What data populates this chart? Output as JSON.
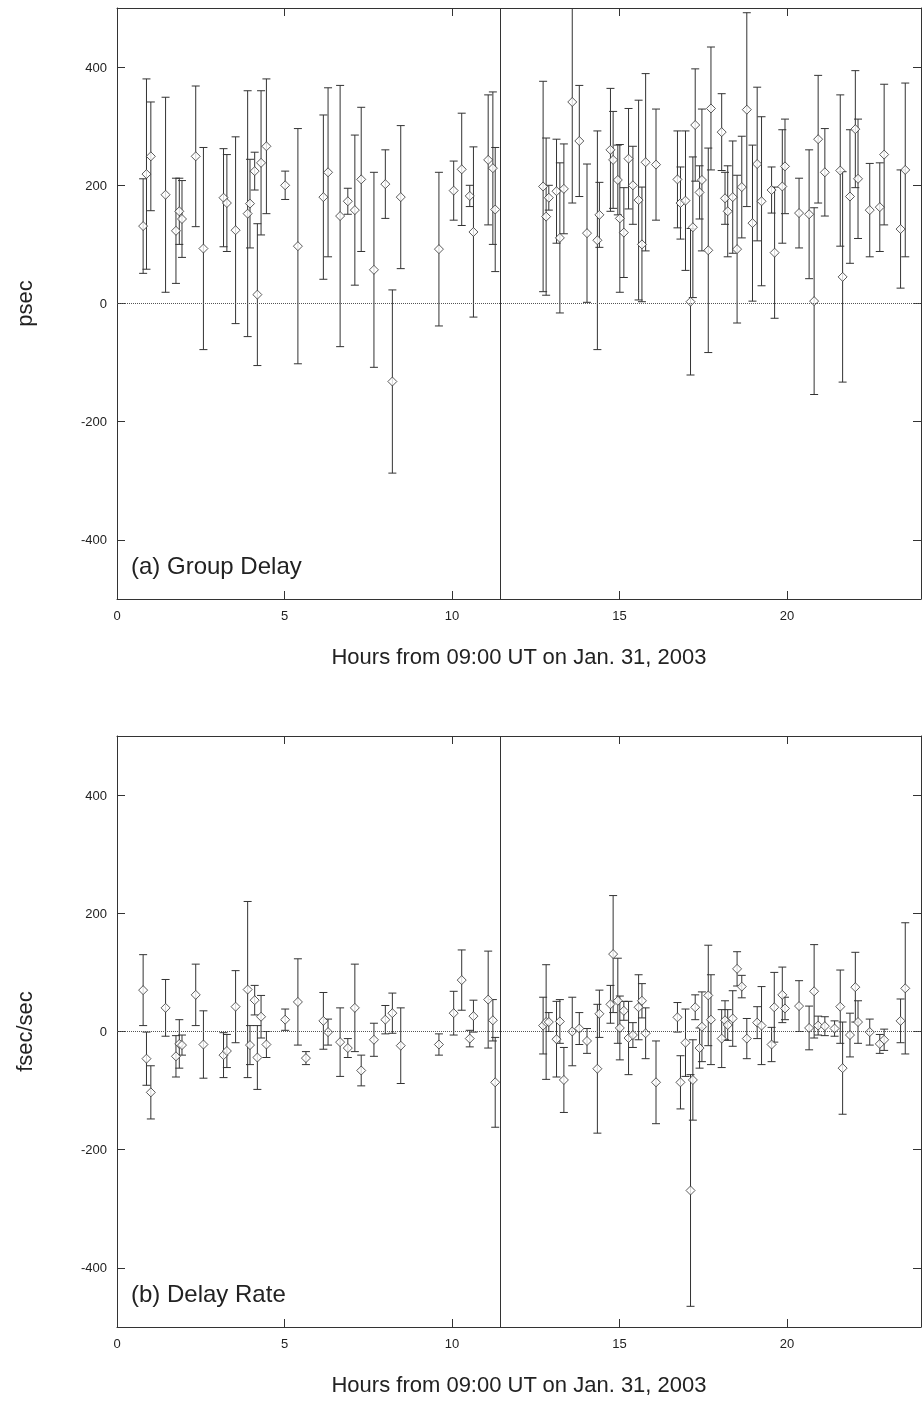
{
  "chart_data": [
    {
      "type": "scatter",
      "xlabel": "Hours from 09:00 UT on Jan. 31, 2003",
      "ylabel": "psec",
      "annotations": [
        "(a) Group Delay"
      ],
      "marker": "diamond",
      "color": "#333333",
      "xlim": [
        0,
        24
      ],
      "xticks": [
        0,
        5,
        10,
        15,
        20
      ],
      "ylim": [
        -500,
        500
      ],
      "yticks": [
        -400,
        -200,
        0,
        200,
        400
      ],
      "ref_lines": [
        {
          "axis": "y",
          "value": 0,
          "line_style": "dotted",
          "color": "#555555"
        },
        {
          "axis": "x",
          "value": 11.45,
          "line_style": "solid",
          "color": "#333333"
        }
      ],
      "x": [
        0.78,
        0.88,
        1.01,
        1.45,
        1.76,
        1.86,
        1.94,
        2.35,
        2.58,
        3.18,
        3.28,
        3.54,
        3.9,
        3.97,
        4.11,
        4.19,
        4.3,
        4.46,
        5.02,
        5.4,
        6.16,
        6.3,
        6.66,
        6.89,
        7.1,
        7.29,
        7.67,
        8.01,
        8.22,
        8.47,
        9.61,
        10.05,
        10.29,
        10.53,
        10.64,
        11.08,
        11.22,
        11.29,
        12.72,
        12.81,
        12.89,
        13.12,
        13.22,
        13.34,
        13.59,
        13.8,
        14.03,
        14.34,
        14.4,
        14.73,
        14.81,
        14.95,
        15.01,
        15.13,
        15.27,
        15.4,
        15.57,
        15.67,
        15.78,
        16.09,
        16.73,
        16.82,
        16.97,
        17.12,
        17.19,
        17.26,
        17.39,
        17.46,
        17.65,
        17.73,
        18.05,
        18.15,
        18.23,
        18.38,
        18.51,
        18.65,
        18.8,
        18.97,
        19.11,
        19.24,
        19.54,
        19.63,
        19.86,
        19.94,
        20.36,
        20.66,
        20.81,
        20.93,
        21.13,
        21.59,
        21.66,
        21.88,
        22.04,
        22.12,
        22.47,
        22.77,
        22.9,
        23.39,
        23.53
      ],
      "values": [
        131,
        219,
        249,
        184,
        123,
        156,
        143,
        249,
        93,
        179,
        170,
        124,
        152,
        169,
        224,
        15,
        238,
        266,
        200,
        97,
        180,
        222,
        148,
        173,
        158,
        210,
        57,
        202,
        -132,
        180,
        92,
        191,
        227,
        182,
        121,
        243,
        229,
        159,
        198,
        147,
        179,
        190,
        111,
        194,
        341,
        275,
        119,
        107,
        150,
        260,
        243,
        209,
        144,
        120,
        245,
        200,
        175,
        100,
        239,
        235,
        210,
        170,
        174,
        3,
        129,
        302,
        188,
        209,
        90,
        330,
        290,
        178,
        156,
        180,
        92,
        197,
        328,
        136,
        236,
        173,
        192,
        86,
        198,
        232,
        153,
        151,
        4,
        278,
        222,
        225,
        45,
        181,
        295,
        211,
        158,
        163,
        252,
        126,
        226
      ],
      "errors": [
        80,
        161,
        92,
        165,
        89,
        56,
        65,
        119,
        171,
        83,
        82,
        158,
        208,
        75,
        32,
        120,
        122,
        114,
        24,
        199,
        139,
        143,
        221,
        22,
        127,
        122,
        165,
        58,
        155,
        121,
        130,
        50,
        95,
        18,
        144,
        110,
        129,
        105,
        178,
        133,
        21,
        88,
        127,
        76,
        [
          170,
          500
        ],
        94,
        117,
        185,
        55,
        104,
        82,
        59,
        125,
        76,
        85,
        66,
        169,
        97,
        150,
        94,
        82,
        61,
        118,
        124,
        119,
        95,
        45,
        120,
        173,
        104,
        65,
        44,
        77,
        95,
        125,
        86,
        164,
        132,
        130,
        143,
        39,
        111,
        96,
        80,
        59,
        109,
        158,
        108,
        74,
        128,
        178,
        113,
        99,
        101,
        79,
        75,
        119,
        100,
        147
      ]
    },
    {
      "type": "scatter",
      "xlabel": "Hours from 09:00 UT on Jan. 31, 2003",
      "ylabel": "fsec/sec",
      "annotations": [
        "(b) Delay Rate"
      ],
      "marker": "diamond",
      "color": "#333333",
      "xlim": [
        0,
        24
      ],
      "xticks": [
        0,
        5,
        10,
        15,
        20
      ],
      "ylim": [
        -500,
        500
      ],
      "yticks": [
        -400,
        -200,
        0,
        200,
        400
      ],
      "ref_lines": [
        {
          "axis": "y",
          "value": 0,
          "line_style": "dotted",
          "color": "#555555"
        },
        {
          "axis": "x",
          "value": 11.45,
          "line_style": "solid",
          "color": "#333333"
        }
      ],
      "x": [
        0.78,
        0.88,
        1.01,
        1.45,
        1.76,
        1.86,
        1.94,
        2.35,
        2.58,
        3.18,
        3.28,
        3.54,
        3.9,
        3.97,
        4.11,
        4.19,
        4.3,
        4.46,
        5.02,
        5.4,
        5.64,
        6.16,
        6.3,
        6.66,
        6.89,
        7.1,
        7.29,
        7.67,
        8.01,
        8.22,
        8.47,
        9.61,
        10.05,
        10.29,
        10.53,
        10.64,
        11.08,
        11.22,
        11.29,
        12.72,
        12.81,
        12.89,
        13.12,
        13.22,
        13.34,
        13.59,
        13.8,
        14.03,
        14.34,
        14.4,
        14.73,
        14.81,
        14.95,
        15.01,
        15.13,
        15.27,
        15.4,
        15.57,
        15.67,
        15.78,
        16.09,
        16.73,
        16.82,
        16.97,
        17.12,
        17.19,
        17.26,
        17.39,
        17.46,
        17.65,
        17.73,
        18.05,
        18.15,
        18.23,
        18.38,
        18.51,
        18.65,
        18.8,
        19.11,
        19.24,
        19.54,
        19.62,
        19.86,
        19.94,
        20.36,
        20.66,
        20.81,
        20.93,
        21.13,
        21.42,
        21.59,
        21.66,
        21.88,
        22.04,
        22.12,
        22.47,
        22.77,
        22.9,
        23.39,
        23.53
      ],
      "values": [
        70,
        -46,
        -103,
        40,
        -42,
        -21,
        -23,
        62,
        -22,
        -40,
        -33,
        42,
        71,
        -23,
        53,
        -44,
        25,
        -22,
        20,
        50,
        -45,
        18,
        -1,
        -18,
        -28,
        40,
        -66,
        -14,
        20,
        31,
        -24,
        -22,
        31,
        87,
        -12,
        26,
        54,
        19,
        -86,
        10,
        16,
        16,
        -13,
        17,
        -82,
        0,
        5,
        -16,
        -63,
        30,
        46,
        131,
        52,
        6,
        35,
        -11,
        -6,
        41,
        52,
        -3,
        -86,
        24,
        -86,
        -19,
        -269,
        -82,
        41,
        -28,
        8,
        61,
        20,
        -12,
        19,
        11,
        22,
        106,
        76,
        -12,
        15,
        10,
        -22,
        41,
        62,
        39,
        43,
        6,
        68,
        10,
        9,
        5,
        42,
        -62,
        -6,
        75,
        16,
        -1,
        -21,
        -14,
        18,
        73
      ],
      "errors": [
        60,
        45,
        45,
        48,
        35,
        41,
        17,
        52,
        57,
        38,
        28,
        61,
        149,
        33,
        25,
        54,
        36,
        22,
        18,
        73,
        11,
        48,
        22,
        58,
        16,
        74,
        26,
        28,
        24,
        34,
        64,
        18,
        37,
        51,
        14,
        27,
        82,
        35,
        76,
        48,
        97,
        16,
        64,
        37,
        55,
        58,
        27,
        21,
        109,
        40,
        32,
        99,
        72,
        54,
        16,
        62,
        21,
        55,
        29,
        43,
        70,
        25,
        45,
        57,
        196,
        68,
        21,
        34,
        59,
        85,
        76,
        49,
        33,
        26,
        47,
        29,
        19,
        34,
        27,
        66,
        29,
        59,
        47,
        19,
        43,
        37,
        79,
        16,
        16,
        13,
        62,
        78,
        37,
        59,
        36,
        22,
        16,
        18,
        37,
        111
      ]
    }
  ]
}
